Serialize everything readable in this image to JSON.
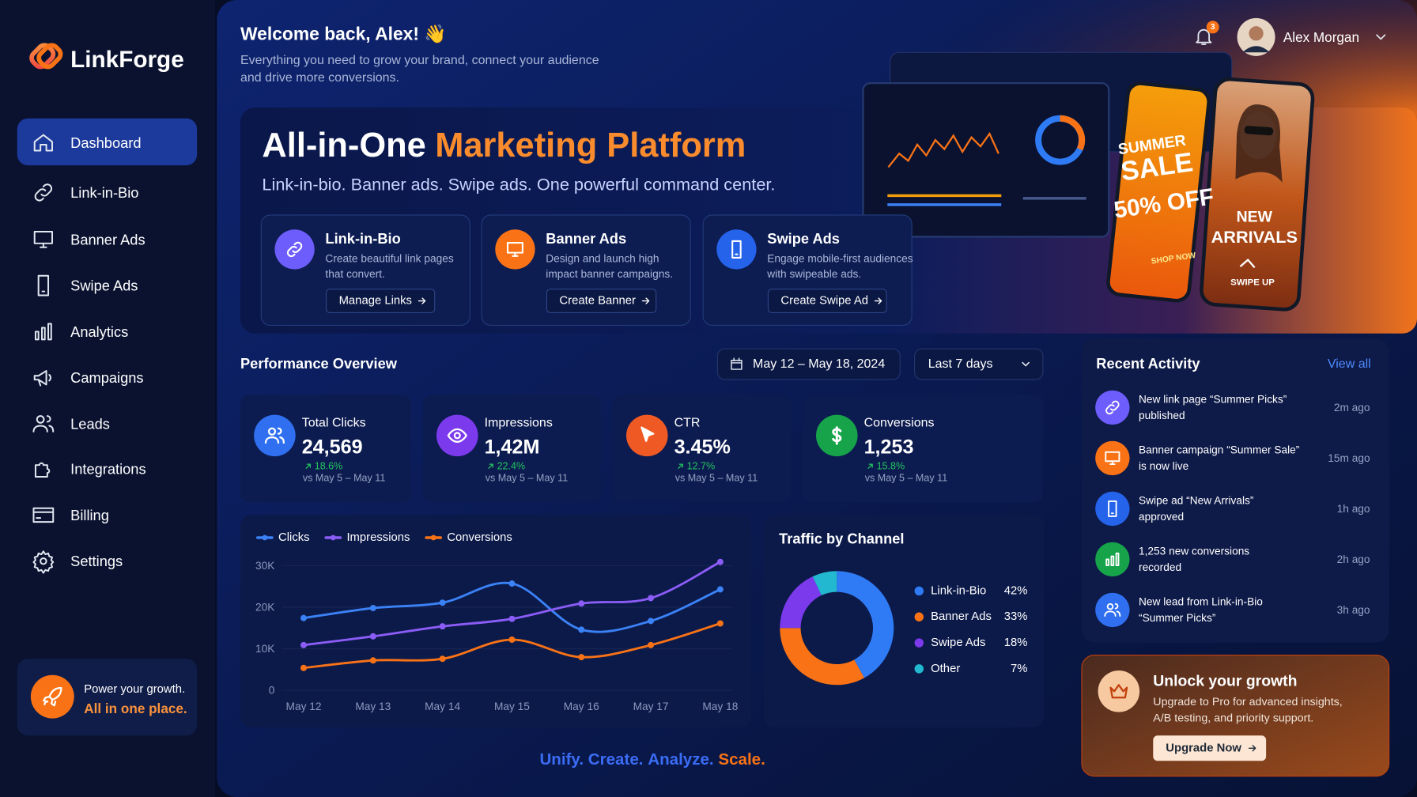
{
  "sidebar": {
    "brand": "LinkForge",
    "nav": [
      "Dashboard",
      "Link-in-Bio",
      "Banner Ads",
      "Swipe Ads",
      "Analytics",
      "Campaigns",
      "Leads",
      "Integrations",
      "Billing",
      "Settings"
    ],
    "promo": {
      "line1": "Power your growth.",
      "line2": "All in one place."
    }
  },
  "header": {
    "greeting": "Welcome back, Alex! 👋",
    "subtitle": [
      "Everything you need to grow your brand, connect your audience",
      "and drive more conversions."
    ],
    "notification_count": "3",
    "user_name": "Alex Morgan"
  },
  "hero": {
    "title": [
      "All-in-One",
      "Marketing Platform"
    ],
    "tagline": "Link-in-bio. Banner ads. Swipe ads. One powerful command center.",
    "features": [
      {
        "title": "Link-in-Bio",
        "description": [
          "Create beautiful link pages",
          "that convert."
        ],
        "button": "Manage Links"
      },
      {
        "title": "Banner Ads",
        "description": [
          "Design and launch high",
          "impact banner campaigns."
        ],
        "button": "Create Banner"
      },
      {
        "title": "Swipe Ads",
        "description": [
          "Engage mobile-first audiences",
          "with swipeable ads."
        ],
        "button": "Create Swipe Ad"
      }
    ],
    "sale_phone": [
      "SUMMER",
      "SALE",
      "50% OFF",
      "SHOP NOW"
    ],
    "arrivals_phone": [
      "NEW",
      "ARRIVALS",
      "SWIPE UP"
    ]
  },
  "performance": {
    "title": "Performance Overview",
    "date_range": "May 12 – May 18, 2024",
    "period": "Last 7 days",
    "kpis": [
      {
        "label": "Total Clicks",
        "value": "24,569",
        "change": "18.6%",
        "comparison": "vs May 5 – May 11"
      },
      {
        "label": "Impressions",
        "value": "1,42M",
        "change": "22.4%",
        "comparison": "vs May 5 – May 11"
      },
      {
        "label": "CTR",
        "value": "3.45%",
        "change": "12.7%",
        "comparison": "vs May 5 – May 11"
      },
      {
        "label": "Conversions",
        "value": "1,253",
        "change": "15.8%",
        "comparison": "vs May 5 – May 11"
      }
    ]
  },
  "chart_data": [
    {
      "type": "line",
      "categories": [
        "May 12",
        "May 13",
        "May 14",
        "May 15",
        "May 16",
        "May 17",
        "May 18"
      ],
      "series": [
        {
          "name": "Clicks",
          "color": "#3b82f6",
          "values": [
            17400,
            19800,
            21100,
            25700,
            14600,
            16700,
            24300
          ]
        },
        {
          "name": "Impressions",
          "color": "#8b5cf6",
          "values": [
            10900,
            13000,
            15400,
            17200,
            20900,
            22200,
            30900
          ]
        },
        {
          "name": "Conversions",
          "color": "#f97316",
          "values": [
            5400,
            7200,
            7600,
            12200,
            8000,
            10900,
            16100
          ]
        }
      ],
      "ylim": [
        0,
        32000
      ],
      "yticks": [
        0,
        {
          "value": 10000,
          "label": "10K"
        },
        {
          "value": 20000,
          "label": "20K"
        },
        {
          "value": 30000,
          "label": "30K"
        }
      ],
      "grid": true
    },
    {
      "type": "pie",
      "donut": true,
      "title": "Traffic by Channel",
      "categories": [
        "Link-in-Bio",
        "Banner Ads",
        "Swipe Ads",
        "Other"
      ],
      "values": [
        42,
        33,
        18,
        7
      ],
      "value_labels": [
        "42%",
        "33%",
        "18%",
        "7%"
      ],
      "colors": [
        "#2f7bf5",
        "#f97316",
        "#7c3aed",
        "#22b8cf"
      ]
    }
  ],
  "activity": {
    "title": "Recent Activity",
    "view_all": "View all",
    "items": [
      {
        "text": [
          "New link page “Summer Picks”",
          "published"
        ],
        "time": "2m ago"
      },
      {
        "text": [
          "Banner campaign “Summer Sale”",
          "is now live"
        ],
        "time": "15m ago"
      },
      {
        "text": [
          "Swipe ad “New Arrivals”",
          "approved"
        ],
        "time": "1h ago"
      },
      {
        "text": [
          "1,253 new conversions",
          "recorded"
        ],
        "time": "2h ago"
      },
      {
        "text": [
          "New lead from Link-in-Bio",
          "“Summer Picks”"
        ],
        "time": "3h ago"
      }
    ]
  },
  "upgrade": {
    "title": "Unlock your growth",
    "description": [
      "Upgrade to Pro for advanced insights,",
      "A/B testing, and priority support."
    ],
    "button": "Upgrade Now"
  },
  "footer": {
    "tagline": [
      "Unify.",
      "Create.",
      "Analyze.",
      "Scale."
    ]
  }
}
